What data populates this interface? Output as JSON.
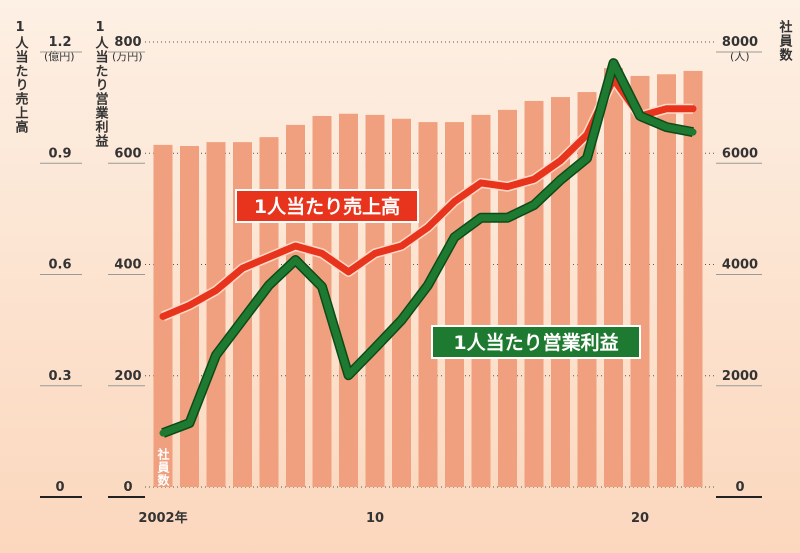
{
  "chart_data": {
    "type": "bar",
    "categories": [
      "2002年",
      null,
      null,
      null,
      null,
      null,
      null,
      null,
      "10",
      null,
      null,
      null,
      null,
      null,
      null,
      null,
      null,
      null,
      "20",
      null,
      null
    ],
    "series": [
      {
        "name": "社員数",
        "type": "bar",
        "axis": "y2",
        "color": "#f0a07e",
        "values": [
          6150,
          6130,
          6200,
          6200,
          6290,
          6510,
          6670,
          6710,
          6690,
          6620,
          6560,
          6560,
          6690,
          6780,
          6940,
          7010,
          7100,
          7530,
          7390,
          7420,
          7480
        ]
      },
      {
        "name": "1人当たり売上高",
        "type": "line",
        "axis": "y",
        "color": "#e8341c",
        "values": [
          0.46,
          0.49,
          0.53,
          0.59,
          0.62,
          0.65,
          0.63,
          0.58,
          0.63,
          0.65,
          0.7,
          0.77,
          0.82,
          0.81,
          0.83,
          0.88,
          0.95,
          1.1,
          1.0,
          1.02,
          1.02
        ]
      },
      {
        "name": "1人当たり営業利益",
        "type": "line",
        "axis": "y3",
        "color": "#1e7a30",
        "values": [
          97,
          115,
          237,
          300,
          363,
          408,
          360,
          201,
          250,
          300,
          363,
          449,
          484,
          484,
          507,
          552,
          591,
          762,
          667,
          647,
          638
        ]
      }
    ],
    "y_label": "1人当たり売上高",
    "y_unit": "(億円)",
    "ylim": [
      0,
      1.2
    ],
    "yticks": [
      0,
      0.3,
      0.6,
      0.9,
      1.2
    ],
    "y3_label": "1人当たり営業利益",
    "y3_unit": "(万円)",
    "y3lim": [
      0,
      800
    ],
    "y3ticks": [
      0,
      200,
      400,
      600,
      800
    ],
    "y2_label": "社員数",
    "y2_unit": "(人)",
    "y2lim": [
      0,
      8000
    ],
    "y2ticks": [
      0,
      2000,
      4000,
      6000,
      8000
    ],
    "grid": true
  }
}
